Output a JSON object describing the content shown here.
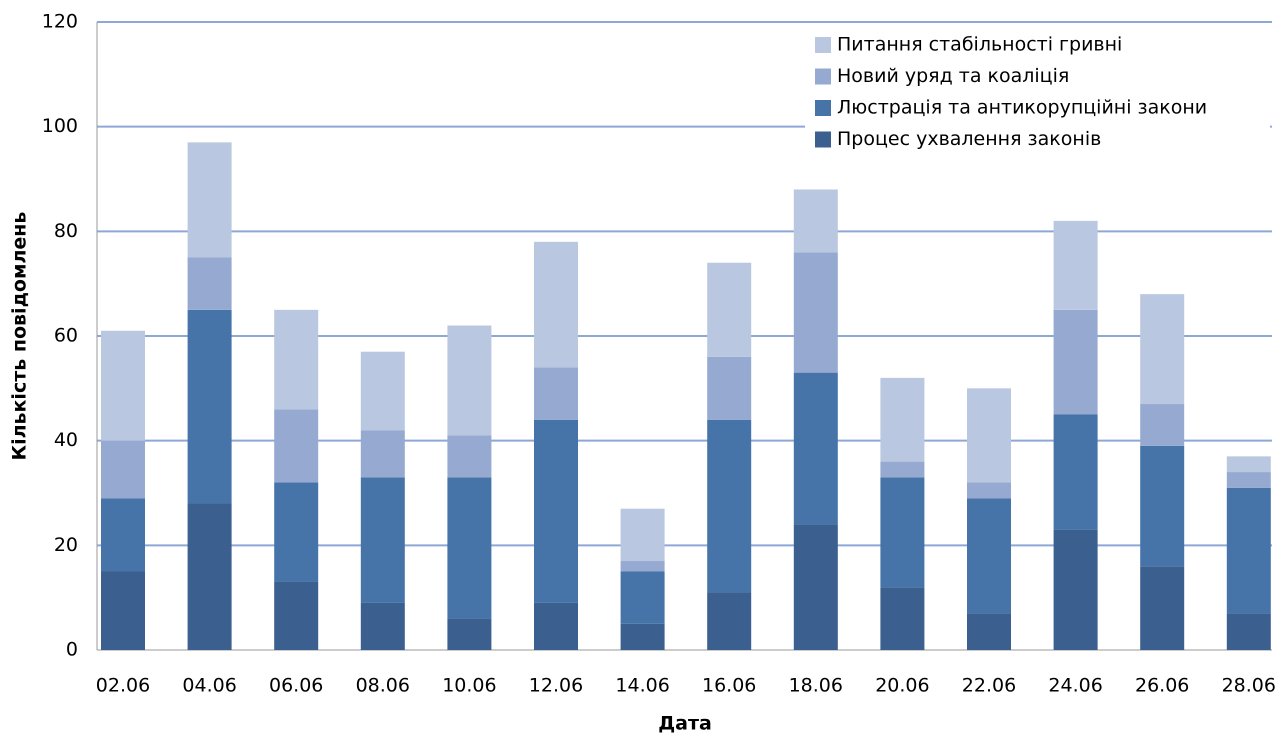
{
  "chart_data": {
    "type": "stacked_bar",
    "x_label": "Дата",
    "y_label": "Кількість повідомлень",
    "categories": [
      "02.06",
      "04.06",
      "06.06",
      "08.06",
      "10.06",
      "12.06",
      "14.06",
      "16.06",
      "18.06",
      "20.06",
      "22.06",
      "24.06",
      "26.06",
      "28.06"
    ],
    "series": [
      {
        "name": "Процес ухвалення законів",
        "color": "#3b5f8f",
        "values": [
          15,
          28,
          13,
          9,
          6,
          9,
          5,
          11,
          24,
          12,
          7,
          23,
          16,
          7
        ]
      },
      {
        "name": "Люстрація та антикорупційні закони",
        "color": "#4674a8",
        "values": [
          14,
          37,
          19,
          24,
          27,
          35,
          10,
          33,
          29,
          21,
          22,
          22,
          23,
          24
        ]
      },
      {
        "name": "Новий уряд та коаліція",
        "color": "#95a9d1",
        "values": [
          11,
          10,
          14,
          9,
          8,
          10,
          2,
          12,
          23,
          3,
          3,
          20,
          8,
          3
        ]
      },
      {
        "name": "Питання стабільності гривні",
        "color": "#bac7e1",
        "values": [
          21,
          22,
          19,
          15,
          21,
          24,
          10,
          18,
          12,
          16,
          18,
          17,
          21,
          3
        ]
      }
    ],
    "ylim": [
      0,
      120
    ],
    "yticks": [
      0,
      20,
      40,
      60,
      80,
      100,
      120
    ],
    "grid": true,
    "legend": "upper right"
  }
}
